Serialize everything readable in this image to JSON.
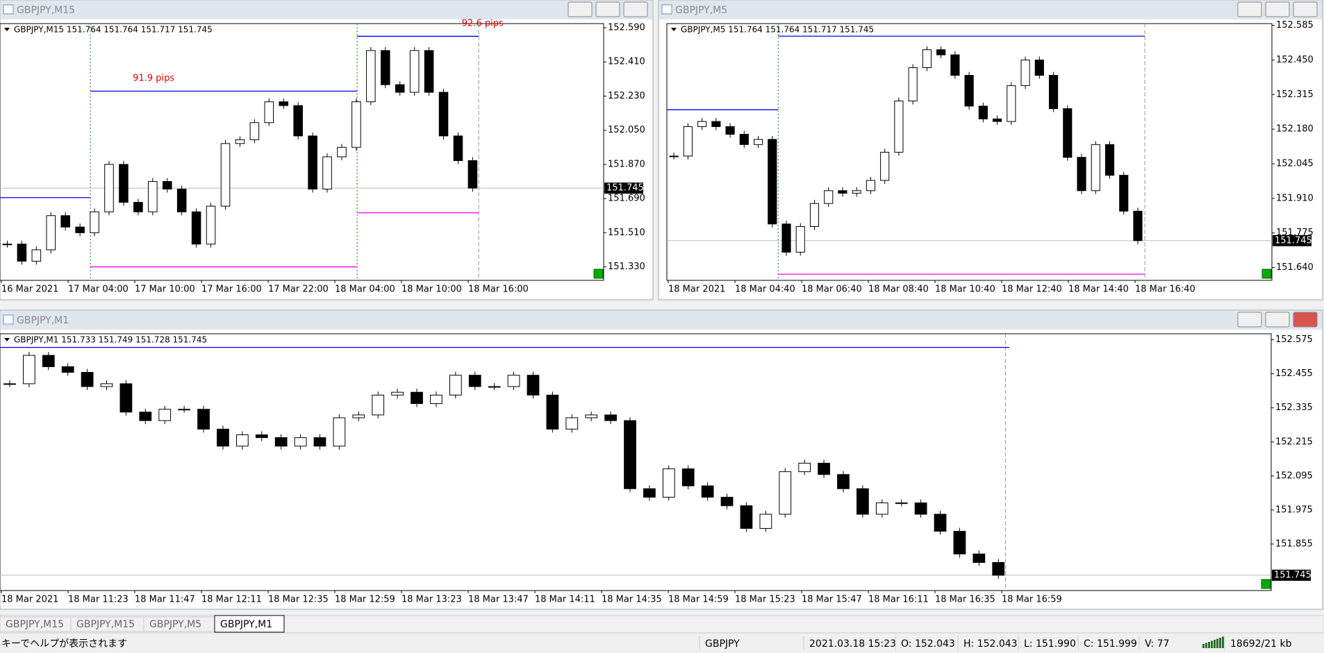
{
  "chart_data": [
    {
      "type": "candlestick",
      "title": "GBPJPY,M15",
      "header": "GBPJPY,M15  151.764 151.764 151.717 151.745",
      "closes": [
        151.45,
        151.36,
        151.42,
        151.6,
        151.54,
        151.51,
        151.62,
        151.87,
        151.67,
        151.62,
        151.78,
        151.74,
        151.62,
        151.45,
        151.65,
        151.98,
        152.0,
        152.09,
        152.2,
        152.18,
        152.02,
        151.74,
        151.91,
        151.96,
        152.2,
        152.47,
        152.29,
        152.25,
        152.47,
        152.25,
        152.02,
        151.89,
        151.745
      ],
      "ylim": [
        151.259,
        152.612
      ],
      "yticks": [
        {
          "value": 152.59,
          "label": "152.590"
        },
        {
          "value": 152.41,
          "label": "152.410"
        },
        {
          "value": 152.23,
          "label": "152.230"
        },
        {
          "value": 152.05,
          "label": "152.050"
        },
        {
          "value": 151.87,
          "label": "151.870"
        },
        {
          "value": 151.69,
          "label": "151.690"
        },
        {
          "value": 151.51,
          "label": "151.510"
        },
        {
          "value": 151.33,
          "label": "151.330"
        }
      ],
      "current_price": {
        "value": 151.745,
        "label": "151.745"
      },
      "levels": [
        {
          "value": 151.695,
          "color": "#0000ff"
        },
        {
          "value": 152.256,
          "color": "#0000ff"
        },
        {
          "value": 152.545,
          "color": "#0000ff"
        },
        {
          "value": 151.33,
          "color": "#ff00ff"
        },
        {
          "value": 151.615,
          "color": "#ff00ff"
        }
      ],
      "annotations": [
        "91.9 pips",
        "92.6 pips"
      ],
      "categories": [
        "16 Mar 2021",
        "17 Mar 04:00",
        "17 Mar 10:00",
        "17 Mar 16:00",
        "17 Mar 22:00",
        "18 Mar 04:00",
        "18 Mar 10:00",
        "18 Mar 16:00"
      ]
    },
    {
      "type": "candlestick",
      "title": "GBPJPY,M5",
      "header": "GBPJPY,M5  151.764 151.764 151.717 151.745",
      "closes": [
        152.075,
        152.19,
        152.21,
        152.19,
        152.16,
        152.12,
        152.14,
        151.81,
        151.7,
        151.8,
        151.89,
        151.94,
        151.93,
        151.94,
        151.98,
        152.09,
        152.29,
        152.42,
        152.49,
        152.47,
        152.39,
        152.27,
        152.22,
        152.21,
        152.35,
        152.45,
        152.39,
        152.26,
        152.07,
        151.94,
        152.12,
        152.0,
        151.86,
        151.745
      ],
      "ylim": [
        151.59,
        152.592
      ],
      "yticks": [
        152.585,
        {
          "value": 152.45,
          "label": "152.450"
        },
        152.315,
        {
          "value": 152.18,
          "label": "152.180"
        },
        152.045,
        {
          "value": 151.91,
          "label": "151.910"
        },
        151.775,
        {
          "value": 151.64,
          "label": "151.640"
        }
      ],
      "current_price": {
        "value": 151.745,
        "label": "151.745"
      },
      "levels": [
        {
          "value": 152.256,
          "color": "#0000ff"
        },
        {
          "value": 152.543,
          "color": "#0000ff"
        },
        {
          "value": 151.614,
          "color": "#ff00ff"
        }
      ],
      "annotations": [],
      "categories": [
        "18 Mar 2021",
        "18 Mar 04:40",
        "18 Mar 06:40",
        "18 Mar 08:40",
        "18 Mar 10:40",
        "18 Mar 12:40",
        "18 Mar 14:40",
        "18 Mar 16:40"
      ]
    },
    {
      "type": "candlestick",
      "title": "GBPJPY,M1",
      "header": "GBPJPY,M1  151.733 151.749 151.728 151.745",
      "closes": [
        152.42,
        152.52,
        152.48,
        152.46,
        152.41,
        152.42,
        152.32,
        152.29,
        152.33,
        152.33,
        152.26,
        152.2,
        152.24,
        152.23,
        152.2,
        152.23,
        152.2,
        152.3,
        152.31,
        152.38,
        152.39,
        152.35,
        152.38,
        152.45,
        152.41,
        152.41,
        152.45,
        152.38,
        152.26,
        152.3,
        152.31,
        152.29,
        152.05,
        152.02,
        152.12,
        152.06,
        152.02,
        151.99,
        151.91,
        151.96,
        152.11,
        152.14,
        152.1,
        152.05,
        151.96,
        152.0,
        152.0,
        151.96,
        151.9,
        151.82,
        151.79,
        151.745
      ],
      "ylim": [
        151.691,
        152.596
      ],
      "yticks": [
        152.575,
        152.455,
        152.335,
        152.215,
        152.095,
        151.975,
        151.855
      ],
      "current_price": {
        "value": 151.745,
        "label": "151.745"
      },
      "levels": [
        {
          "value": 152.548,
          "color": "#0000ff"
        }
      ],
      "annotations": [],
      "categories": [
        "18 Mar 2021",
        "18 Mar 11:23",
        "18 Mar 11:47",
        "18 Mar 12:11",
        "18 Mar 12:35",
        "18 Mar 12:59",
        "18 Mar 13:23",
        "18 Mar 13:47",
        "18 Mar 14:11",
        "18 Mar 14:35",
        "18 Mar 14:59",
        "18 Mar 15:23",
        "18 Mar 15:47",
        "18 Mar 16:11",
        "18 Mar 16:35",
        "18 Mar 16:59"
      ]
    }
  ],
  "tabs": [
    "GBPJPY,M15",
    "GBPJPY,M15",
    "GBPJPY,M5",
    "GBPJPY,M1"
  ],
  "status": {
    "help": "キーでヘルプが表示されます",
    "symbol": "GBPJPY",
    "time": "2021.03.18 15:23",
    "open": "O: 152.043",
    "high": "H: 152.043",
    "low": "L: 151.990",
    "close": "C: 151.999",
    "volume": "V: 77",
    "traffic": "18692/21 kb"
  }
}
